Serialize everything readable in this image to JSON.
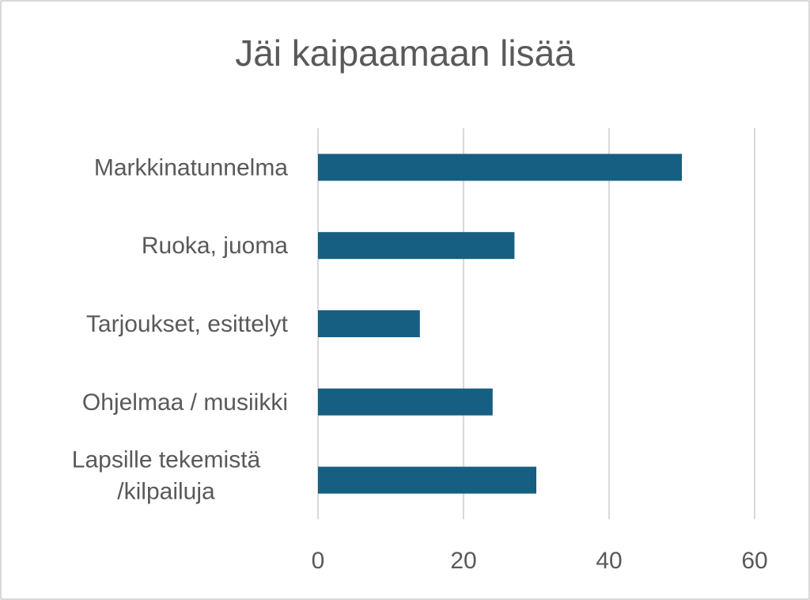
{
  "chart_data": {
    "type": "bar",
    "orientation": "horizontal",
    "title": "Jäi kaipaamaan lisää",
    "categories": [
      "Markkinatunnelma",
      "Ruoka, juoma",
      "Tarjoukset, esittelyt",
      "Ohjelmaa / musiikki",
      "Lapsille tekemistä /kilpailuja"
    ],
    "category_lines": [
      [
        "Markkinatunnelma"
      ],
      [
        "Ruoka, juoma"
      ],
      [
        "Tarjoukset, esittelyt"
      ],
      [
        "Ohjelmaa / musiikki"
      ],
      [
        "Lapsille tekemistä",
        "/kilpailuja"
      ]
    ],
    "values": [
      50,
      27,
      14,
      24,
      30
    ],
    "xlim": [
      0,
      60
    ],
    "xticks": [
      "0",
      "20",
      "40",
      "60"
    ],
    "xlabel": "",
    "ylabel": "",
    "grid": true,
    "legend": "none",
    "bar_color": "#175f82",
    "grid_color": "#d9d9d9"
  }
}
